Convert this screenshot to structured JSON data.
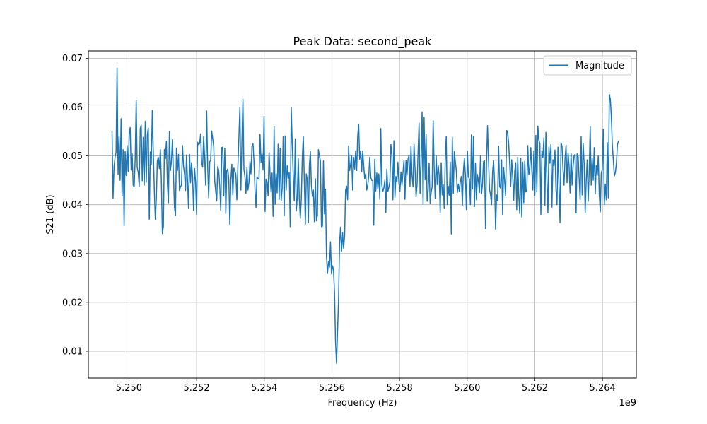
{
  "chart_data": {
    "type": "line",
    "title": "Peak Data: second_peak",
    "xlabel": "Frequency (Hz)",
    "ylabel": "S21 (dB)",
    "x_offset_label": "1e9",
    "xlim": [
      5.2488,
      5.265
    ],
    "ylim": [
      0.0045,
      0.0715
    ],
    "x_tick_values": [
      5.25,
      5.252,
      5.254,
      5.256,
      5.258,
      5.26,
      5.262,
      5.264
    ],
    "x_tick_labels": [
      "5.250",
      "5.252",
      "5.254",
      "5.256",
      "5.258",
      "5.260",
      "5.262",
      "5.264"
    ],
    "y_tick_values": [
      0.01,
      0.02,
      0.03,
      0.04,
      0.05,
      0.06,
      0.07
    ],
    "y_tick_labels": [
      "0.01",
      "0.02",
      "0.03",
      "0.04",
      "0.05",
      "0.06",
      "0.07"
    ],
    "grid": true,
    "legend_position": "top-right",
    "series": [
      {
        "name": "Magnitude",
        "color": "#1f77b4",
        "x_start": 5.2495,
        "x_end": 5.2645,
        "values": [
          0.055,
          0.0413,
          0.0478,
          0.0497,
          0.0508,
          0.068,
          0.0462,
          0.0539,
          0.045,
          0.0576,
          0.0418,
          0.0513,
          0.0357,
          0.0509,
          0.046,
          0.0521,
          0.0468,
          0.0545,
          0.0558,
          0.0471,
          0.0504,
          0.044,
          0.0437,
          0.0495,
          0.0613,
          0.0476,
          0.0466,
          0.0438,
          0.0556,
          0.0563,
          0.0449,
          0.0538,
          0.044,
          0.0571,
          0.0446,
          0.0542,
          0.0557,
          0.037,
          0.0508,
          0.0483,
          0.0593,
          0.0508,
          0.043,
          0.037,
          0.0412,
          0.049,
          0.0497,
          0.0474,
          0.0513,
          0.0448,
          0.0341,
          0.0356,
          0.0513,
          0.0494,
          0.053,
          0.0442,
          0.0404,
          0.055,
          0.047,
          0.0488,
          0.0533,
          0.0462,
          0.0395,
          0.0378,
          0.0516,
          0.047,
          0.0503,
          0.0429,
          0.0437,
          0.044,
          0.0521,
          0.0479,
          0.0463,
          0.0429,
          0.0502,
          0.0449,
          0.0392,
          0.0503,
          0.0445,
          0.0486,
          0.0458,
          0.0388,
          0.0474,
          0.0447,
          0.038,
          0.0528,
          0.0523,
          0.0525,
          0.0545,
          0.0485,
          0.0477,
          0.054,
          0.0497,
          0.044,
          0.0592,
          0.0478,
          0.0414,
          0.0488,
          0.0491,
          0.0551,
          0.0535,
          0.052,
          0.0448,
          0.0427,
          0.0408,
          0.0478,
          0.047,
          0.0437,
          0.0388,
          0.0517,
          0.0518,
          0.0418,
          0.0516,
          0.0382,
          0.047,
          0.0473,
          0.045,
          0.036,
          0.045,
          0.0483,
          0.042,
          0.0475,
          0.0469,
          0.0462,
          0.041,
          0.0479,
          0.0537,
          0.0599,
          0.043,
          0.0528,
          0.0616,
          0.0473,
          0.0457,
          0.0423,
          0.0477,
          0.043,
          0.0445,
          0.0488,
          0.0463,
          0.052,
          0.0525,
          0.0489,
          0.043,
          0.0394,
          0.0457,
          0.0453,
          0.0454,
          0.0544,
          0.0487,
          0.0504,
          0.0471,
          0.0581,
          0.0386,
          0.0452,
          0.0447,
          0.0419,
          0.0507,
          0.046,
          0.0426,
          0.0465,
          0.0376,
          0.056,
          0.0401,
          0.0463,
          0.0424,
          0.0524,
          0.0411,
          0.0516,
          0.0408,
          0.0434,
          0.054,
          0.0377,
          0.0541,
          0.043,
          0.048,
          0.0454,
          0.0466,
          0.0355,
          0.0599,
          0.0525,
          0.046,
          0.0408,
          0.0535,
          0.0387,
          0.0416,
          0.0494,
          0.0413,
          0.0372,
          0.0412,
          0.0497,
          0.054,
          0.0451,
          0.036,
          0.0463,
          0.045,
          0.0363,
          0.048,
          0.0509,
          0.0441,
          0.0417,
          0.043,
          0.0365,
          0.0453,
          0.0367,
          0.0378,
          0.0513,
          0.05,
          0.0489,
          0.0355,
          0.0356,
          0.049,
          0.0381,
          0.0432,
          0.0295,
          0.0259,
          0.0284,
          0.0272,
          0.0324,
          0.0258,
          0.0275,
          0.0267,
          0.022,
          0.012,
          0.0075,
          0.014,
          0.0205,
          0.032,
          0.0354,
          0.0305,
          0.0343,
          0.0311,
          0.0335,
          0.043,
          0.0438,
          0.041,
          0.052,
          0.047,
          0.0483,
          0.05,
          0.043,
          0.0497,
          0.0473,
          0.051,
          0.047,
          0.054,
          0.0564,
          0.0493,
          0.051,
          0.0467,
          0.051,
          0.048,
          0.0453,
          0.0463,
          0.043,
          0.044,
          0.0458,
          0.0497,
          0.0456,
          0.045,
          0.0449,
          0.0358,
          0.0493,
          0.0428,
          0.0465,
          0.0433,
          0.0463,
          0.0411,
          0.0556,
          0.044,
          0.0427,
          0.0434,
          0.045,
          0.0384,
          0.0473,
          0.0427,
          0.0436,
          0.0447,
          0.0523,
          0.0502,
          0.041,
          0.0531,
          0.0415,
          0.0458,
          0.0447,
          0.0487,
          0.0443,
          0.0428,
          0.0467,
          0.044,
          0.0465,
          0.0491,
          0.0411,
          0.0491,
          0.046,
          0.0493,
          0.0501,
          0.0438,
          0.052,
          0.046,
          0.0437,
          0.0524,
          0.0474,
          0.0416,
          0.0441,
          0.0508,
          0.0567,
          0.0423,
          0.0481,
          0.059,
          0.04,
          0.0579,
          0.0451,
          0.0544,
          0.0407,
          0.0428,
          0.0485,
          0.0403,
          0.0425,
          0.0437,
          0.0572,
          0.0475,
          0.0413,
          0.0501,
          0.0441,
          0.048,
          0.0459,
          0.0384,
          0.0486,
          0.042,
          0.0441,
          0.0392,
          0.0491,
          0.054,
          0.04,
          0.0438,
          0.0419,
          0.0487,
          0.034,
          0.0538,
          0.0423,
          0.0509,
          0.0489,
          0.047,
          0.0425,
          0.0442,
          0.0427,
          0.0448,
          0.0458,
          0.0399,
          0.0468,
          0.0495,
          0.0462,
          0.039,
          0.051,
          0.0457,
          0.0453,
          0.04,
          0.0543,
          0.0432,
          0.054,
          0.0396,
          0.0485,
          0.041,
          0.0462,
          0.0447,
          0.0425,
          0.05,
          0.0422,
          0.0442,
          0.0488,
          0.049,
          0.0351,
          0.0488,
          0.0562,
          0.049,
          0.0431,
          0.042,
          0.04,
          0.0467,
          0.049,
          0.0446,
          0.035,
          0.042,
          0.0408,
          0.052,
          0.0437,
          0.0434,
          0.0492,
          0.038,
          0.0476,
          0.045,
          0.0418,
          0.0552,
          0.0548,
          0.0526,
          0.0484,
          0.0438,
          0.0492,
          0.0458,
          0.0409,
          0.0468,
          0.0486,
          0.039,
          0.0497,
          0.0419,
          0.0382,
          0.0495,
          0.0375,
          0.0487,
          0.0404,
          0.0489,
          0.0426,
          0.0427,
          0.0521,
          0.0461,
          0.0475,
          0.0517,
          0.047,
          0.043,
          0.051,
          0.0419,
          0.0542,
          0.0426,
          0.0561,
          0.0533,
          0.0525,
          0.038,
          0.051,
          0.0497,
          0.0537,
          0.0399,
          0.0548,
          0.0451,
          0.0383,
          0.0518,
          0.0485,
          0.0523,
          0.0395,
          0.0492,
          0.048,
          0.0512,
          0.043,
          0.04,
          0.0518,
          0.044,
          0.0363,
          0.0527,
          0.052,
          0.0471,
          0.044,
          0.0495,
          0.0522,
          0.0445,
          0.0506,
          0.048,
          0.0424,
          0.0506,
          0.044,
          0.0479,
          0.05,
          0.0503,
          0.0383,
          0.0504,
          0.05,
          0.0454,
          0.041,
          0.054,
          0.042,
          0.0526,
          0.0484,
          0.0384,
          0.0448,
          0.0492,
          0.0407,
          0.047,
          0.056,
          0.044,
          0.0495,
          0.045,
          0.0517,
          0.0422,
          0.048,
          0.046,
          0.05,
          0.0422,
          0.0385,
          0.0465,
          0.0472,
          0.0555,
          0.04,
          0.0442,
          0.041,
          0.0527,
          0.0414,
          0.0626,
          0.0616,
          0.058,
          0.0521,
          0.0491,
          0.0459,
          0.0466,
          0.0484,
          0.0522,
          0.053,
          0.0531
        ]
      }
    ]
  }
}
